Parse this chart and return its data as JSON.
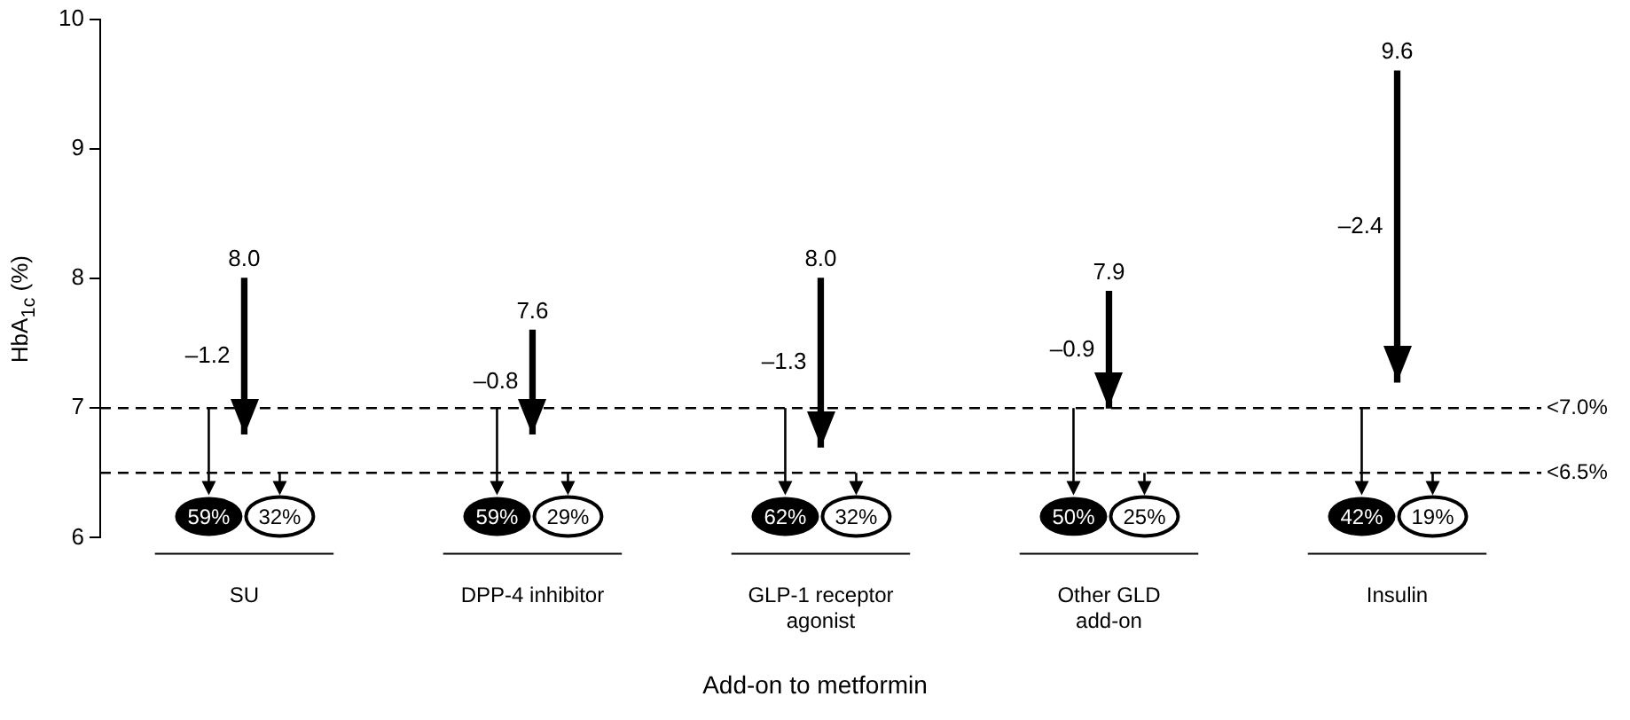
{
  "chart_data": {
    "type": "bar",
    "xlabel": "Add-on to metformin",
    "ylabel": "HbA$_{1c}$ (%)",
    "categories": [
      "SU",
      "DPP-4 inhibitor",
      "GLP-1 receptor agonist",
      "Other GLD add-on",
      "Insulin"
    ],
    "base": [
      8.0,
      7.6,
      8.0,
      7.9,
      9.6
    ],
    "values": [
      -1.2,
      -0.8,
      -1.3,
      -0.9,
      -2.4
    ],
    "color": "#000000",
    "ylim": [
      6,
      10
    ],
    "yticks": [
      6,
      7,
      8,
      9,
      10
    ],
    "grid": false,
    "legend": false,
    "ref_lines": [
      {
        "axis": "y",
        "value": 7,
        "label": "<7.0%",
        "line_style": "dashed"
      },
      {
        "axis": "y",
        "value": 6.5,
        "label": "<6.5%",
        "line_style": "dashed"
      }
    ],
    "annotations": [
      {
        "text": "8.0",
        "x": "SU",
        "y": 8.0
      },
      {
        "text": "7.6",
        "x": "DPP-4 inhibitor",
        "y": 7.6
      },
      {
        "text": "8.0",
        "x": "GLP-1 receptor agonist",
        "y": 8.0
      },
      {
        "text": "7.9",
        "x": "Other GLD add-on",
        "y": 7.9
      },
      {
        "text": "9.6",
        "x": "Insulin",
        "y": 9.6
      },
      {
        "text": "–1.2",
        "x": "SU",
        "y": 7.4
      },
      {
        "text": "–0.8",
        "x": "DPP-4 inhibitor",
        "y": 7.2
      },
      {
        "text": "–1.3",
        "x": "GLP-1 receptor agonist",
        "y": 7.35
      },
      {
        "text": "–0.9",
        "x": "Other GLD add-on",
        "y": 7.45
      },
      {
        "text": "–2.4",
        "x": "Insulin",
        "y": 8.4
      },
      "59%",
      "32%",
      "59%",
      "29%",
      "62%",
      "32%",
      "50%",
      "25%",
      "42%",
      "19%"
    ]
  }
}
